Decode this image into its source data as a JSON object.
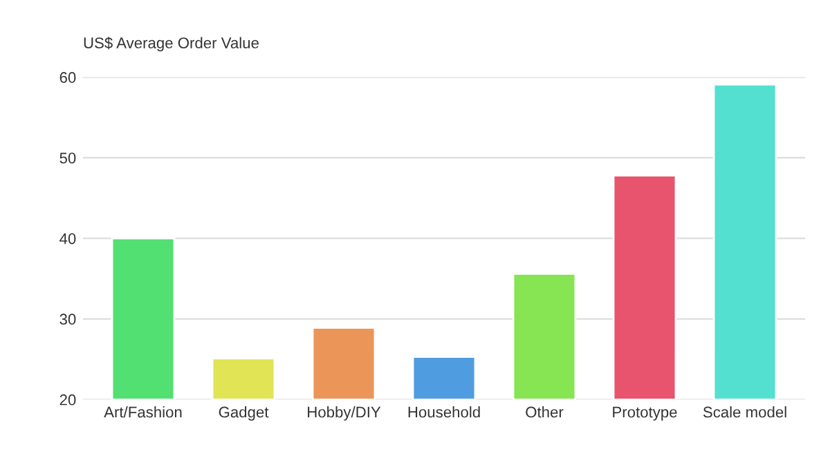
{
  "chart_data": {
    "type": "bar",
    "title": "US$ Average Order Value",
    "categories": [
      "Art/Fashion",
      "Gadget",
      "Hobby/DIY",
      "Household",
      "Other",
      "Prototype",
      "Scale model"
    ],
    "values": [
      40,
      25.1,
      28.9,
      25.3,
      35.6,
      47.8,
      59.1
    ],
    "colors": [
      "#52e072",
      "#e1e455",
      "#eb9558",
      "#509ce0",
      "#87e553",
      "#e8536e",
      "#53e0d0"
    ],
    "ylim": [
      20,
      60
    ],
    "yticks": [
      20,
      30,
      40,
      50,
      60
    ],
    "grid": "y"
  }
}
